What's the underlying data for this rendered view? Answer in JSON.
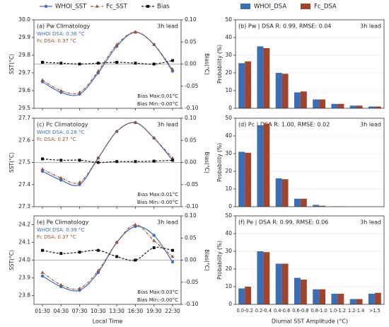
{
  "chart_data": [
    {
      "type": "line",
      "title": "(a) Pw Climatology",
      "lead": "3h lead",
      "ylabel": "SST(°C)",
      "y2label": "Bias(°C)",
      "series": [
        {
          "name": "WHOI_SST",
          "color": "#3d6bc0",
          "marker": "circle",
          "values": [
            29.65,
            29.59,
            29.58,
            29.7,
            29.85,
            29.93,
            29.86,
            29.71
          ]
        },
        {
          "name": "Fc_SST",
          "color": "#a0522d",
          "marker": "triangle",
          "values": [
            29.66,
            29.6,
            29.59,
            29.71,
            29.86,
            29.93,
            29.86,
            29.72
          ]
        },
        {
          "name": "Bias",
          "color": "#111111",
          "marker": "square",
          "axis": "y2",
          "values": [
            0.004,
            0.002,
            0.0,
            0.002,
            0.004,
            0.002,
            0.0,
            0.008
          ]
        }
      ],
      "ylim": [
        29.5,
        30.0
      ],
      "yticks": [
        29.5,
        29.6,
        29.7,
        29.8,
        29.9,
        {
          "value": 30.0,
          "label": "30.0"
        }
      ],
      "y2lim": [
        -0.1,
        0.1
      ],
      "y2ticks": [
        {
          "value": -0.1,
          "label": "-0.10"
        },
        {
          "value": -0.05,
          "label": "-0.05"
        },
        {
          "value": 0,
          "label": "0.00"
        },
        {
          "value": 0.05,
          "label": "0.05"
        },
        {
          "value": 0.1,
          "label": "0.10"
        }
      ],
      "dsa_labels": [
        "WHOI DSA: 0.36 °C",
        "Fc DSA: 0.37 °C"
      ],
      "bias_labels": [
        "Bias Max:0.01°C",
        "Bias Min:-0.00°C"
      ]
    },
    {
      "type": "bar",
      "title": "(b) Pw | DSA R: 0.99, RMSE: 0.04",
      "lead": "3h lead",
      "ylabel": "Probability (%)",
      "series": [
        {
          "name": "WHOI_DSA",
          "color": "#3a6fb8",
          "values": [
            25.5,
            35,
            20,
            9,
            5,
            2.5,
            1.5,
            1
          ]
        },
        {
          "name": "Fc_DSA",
          "color": "#a0442c",
          "values": [
            26.5,
            34,
            19.5,
            9.5,
            5,
            2.5,
            1.5,
            1
          ]
        }
      ],
      "ylim": [
        0,
        50
      ],
      "yticks": [
        0,
        10,
        20,
        30,
        40,
        50
      ],
      "grid": true
    },
    {
      "type": "line",
      "title": "(c) Pc Climatology",
      "lead": "3h lead",
      "ylabel": "SST(°C)",
      "y2label": "Bias(°C)",
      "series": [
        {
          "name": "WHOI_SST",
          "color": "#3d6bc0",
          "marker": "circle",
          "values": [
            27.46,
            27.42,
            27.4,
            27.52,
            27.64,
            27.68,
            27.61,
            27.51
          ]
        },
        {
          "name": "Fc_SST",
          "color": "#a0522d",
          "marker": "triangle",
          "values": [
            27.47,
            27.43,
            27.41,
            27.52,
            27.64,
            27.68,
            27.61,
            27.52
          ]
        },
        {
          "name": "Bias",
          "color": "#111111",
          "marker": "square",
          "axis": "y2",
          "values": [
            0.008,
            0.005,
            0.005,
            0.0,
            0.002,
            0.002,
            0.003,
            0.005
          ]
        }
      ],
      "ylim": [
        27.3,
        27.7
      ],
      "yticks": [
        27.3,
        27.4,
        27.5,
        27.6,
        27.7
      ],
      "y2lim": [
        -0.1,
        0.1
      ],
      "y2ticks": [
        {
          "value": -0.1,
          "label": "-0.10"
        },
        {
          "value": -0.05,
          "label": "-0.05"
        },
        {
          "value": 0,
          "label": "0.00"
        },
        {
          "value": 0.05,
          "label": "0.05"
        },
        {
          "value": 0.1,
          "label": "0.10"
        }
      ],
      "dsa_labels": [
        "WHOI DSA: 0.28 °C",
        "Fc DSA: 0.27 °C"
      ],
      "bias_labels": [
        "Bias Max:0.01°C",
        "Bias Min:-0.00°C"
      ]
    },
    {
      "type": "bar",
      "title": "(d) Pc | DSA R: 1.00, RMSE: 0.02",
      "lead": "3h lead",
      "ylabel": "Probability (%)",
      "series": [
        {
          "name": "WHOI_DSA",
          "color": "#3a6fb8",
          "values": [
            31,
            46,
            16,
            4.5,
            1,
            0.2,
            0,
            0
          ]
        },
        {
          "name": "Fc_DSA",
          "color": "#a0442c",
          "values": [
            30.5,
            47,
            15.5,
            4.5,
            0.5,
            0.2,
            0,
            0
          ]
        }
      ],
      "ylim": [
        0,
        50
      ],
      "yticks": [
        0,
        10,
        20,
        30,
        40,
        50
      ],
      "grid": true
    },
    {
      "type": "line",
      "title": "(e) Pe Climatology",
      "lead": "3h lead",
      "ylabel": "SST(°C)",
      "y2label": "Bias(°C)",
      "xlabel": "Local Time",
      "categories": [
        "01:30",
        "04:30",
        "07:30",
        "10:30",
        "13:30",
        "16:30",
        "19:30",
        "22:30"
      ],
      "series": [
        {
          "name": "WHOI_SST",
          "color": "#3d6bc0",
          "marker": "circle",
          "values": [
            23.91,
            23.85,
            23.83,
            23.93,
            24.1,
            24.19,
            24.14,
            23.99
          ]
        },
        {
          "name": "Fc_SST",
          "color": "#a0522d",
          "marker": "triangle",
          "values": [
            23.93,
            23.86,
            23.84,
            23.94,
            24.1,
            24.2,
            24.11,
            24.02
          ]
        },
        {
          "name": "Bias",
          "color": "#111111",
          "marker": "square",
          "axis": "y2",
          "values": [
            0.022,
            0.015,
            0.018,
            0.022,
            0.008,
            0.0,
            0.028,
            0.022
          ]
        }
      ],
      "ylim": [
        23.75,
        24.25
      ],
      "yticks": [
        23.8,
        23.9,
        {
          "value": 24,
          "label": "24.0"
        },
        24.1,
        24.2
      ],
      "y2lim": [
        -0.1,
        0.1
      ],
      "y2ticks": [
        {
          "value": -0.1,
          "label": "-0.10"
        },
        {
          "value": -0.05,
          "label": "-0.05"
        },
        {
          "value": 0,
          "label": "0.00"
        },
        {
          "value": 0.05,
          "label": "0.05"
        },
        {
          "value": 0.1,
          "label": "0.10"
        }
      ],
      "dsa_labels": [
        "WHOI DSA: 0.39 °C",
        "Fc DSA: 0.37 °C"
      ],
      "bias_labels": [
        "Bias Max:0.03°C",
        "Bias Min:-0.00°C"
      ]
    },
    {
      "type": "bar",
      "title": "(f) Pe | DSA R: 0.99, RMSE: 0.06",
      "lead": "3h lead",
      "ylabel": "Probability (%)",
      "xlabel": "Diurnal SST Amplitude (°C)",
      "categories": [
        "0.0-0.2",
        "0.2-0.4",
        "0.4-0.6",
        "0.6-0.8",
        "0.8-1.0",
        "1.0-1.2",
        "1.2-1.4",
        ">1.5"
      ],
      "series": [
        {
          "name": "WHOI_DSA",
          "color": "#3a6fb8",
          "values": [
            9,
            30,
            23,
            15,
            8.5,
            6,
            3,
            6
          ]
        },
        {
          "name": "Fc_DSA",
          "color": "#a0442c",
          "values": [
            10,
            29.5,
            23,
            14,
            8.5,
            6,
            3,
            6.5
          ]
        }
      ],
      "ylim": [
        0,
        50
      ],
      "yticks": [
        0,
        10,
        20,
        30,
        40,
        50
      ],
      "grid": true
    }
  ]
}
